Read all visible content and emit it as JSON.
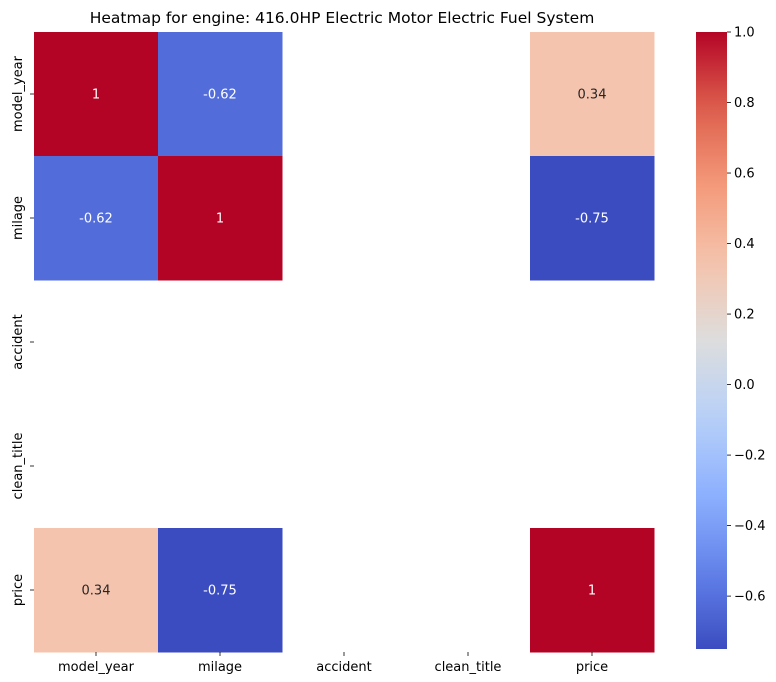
{
  "chart_data": {
    "type": "heatmap",
    "title": "Heatmap for engine: 416.0HP Electric Motor Electric Fuel System",
    "xlabel": "",
    "ylabel": "",
    "x_labels": [
      "model_year",
      "milage",
      "accident",
      "clean_title",
      "price"
    ],
    "y_labels": [
      "model_year",
      "milage",
      "accident",
      "clean_title",
      "price"
    ],
    "values": [
      [
        1,
        -0.62,
        null,
        null,
        0.34
      ],
      [
        -0.62,
        1,
        null,
        null,
        -0.75
      ],
      [
        null,
        null,
        null,
        null,
        null
      ],
      [
        null,
        null,
        null,
        null,
        null
      ],
      [
        0.34,
        -0.75,
        null,
        null,
        1
      ]
    ],
    "annotations": [
      [
        "1",
        "-0.62",
        "",
        "",
        "0.34"
      ],
      [
        "-0.62",
        "1",
        "",
        "",
        "-0.75"
      ],
      [
        "",
        "",
        "",
        "",
        ""
      ],
      [
        "",
        "",
        "",
        "",
        ""
      ],
      [
        "0.34",
        "-0.75",
        "",
        "",
        "1"
      ]
    ],
    "colormap": "coolwarm",
    "vmin": -0.75,
    "vmax": 1.0,
    "colorbar_ticks": [
      1.0,
      0.8,
      0.6,
      0.4,
      0.2,
      0.0,
      -0.2,
      -0.4,
      -0.6
    ],
    "colorbar_tick_labels": [
      "1.0",
      "0.8",
      "0.6",
      "0.4",
      "0.2",
      "0.0",
      "−0.2",
      "−0.4",
      "−0.6"
    ]
  }
}
